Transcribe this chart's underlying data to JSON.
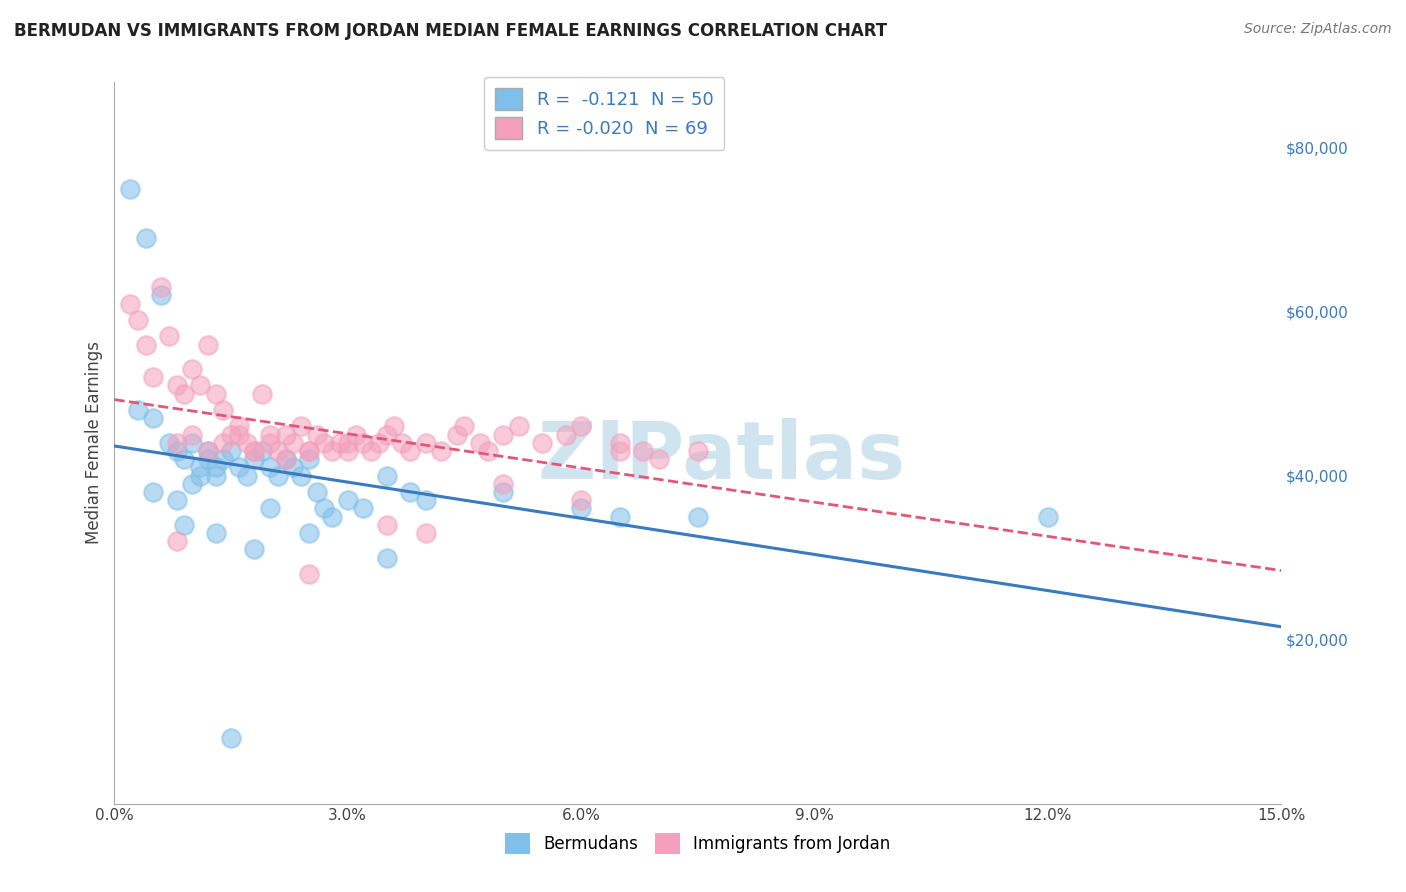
{
  "title": "BERMUDAN VS IMMIGRANTS FROM JORDAN MEDIAN FEMALE EARNINGS CORRELATION CHART",
  "source": "Source: ZipAtlas.com",
  "ylabel": "Median Female Earnings",
  "xlim": [
    0.0,
    0.15
  ],
  "ylim": [
    0,
    88000
  ],
  "xticks": [
    0.0,
    0.03,
    0.06,
    0.09,
    0.12,
    0.15
  ],
  "xticklabels": [
    "0.0%",
    "3.0%",
    "6.0%",
    "9.0%",
    "12.0%",
    "15.0%"
  ],
  "ytick_positions": [
    20000,
    40000,
    60000,
    80000
  ],
  "ytick_labels": [
    "$20,000",
    "$40,000",
    "$60,000",
    "$80,000"
  ],
  "blue_R": -0.121,
  "blue_N": 50,
  "pink_R": -0.02,
  "pink_N": 69,
  "blue_color": "#7fbfea",
  "pink_color": "#f4a0bc",
  "blue_line_color": "#3a7abf",
  "pink_line_color": "#e05878",
  "watermark": "ZIPatlas",
  "watermark_color": "#d0e4f0",
  "background_color": "#ffffff",
  "grid_color": "#cccccc",
  "blue_x": [
    0.002,
    0.004,
    0.003,
    0.005,
    0.006,
    0.007,
    0.008,
    0.009,
    0.01,
    0.011,
    0.012,
    0.013,
    0.005,
    0.008,
    0.01,
    0.011,
    0.012,
    0.013,
    0.014,
    0.015,
    0.016,
    0.017,
    0.018,
    0.019,
    0.02,
    0.021,
    0.022,
    0.023,
    0.024,
    0.025,
    0.026,
    0.027,
    0.028,
    0.03,
    0.032,
    0.035,
    0.038,
    0.04,
    0.05,
    0.06,
    0.065,
    0.075,
    0.009,
    0.013,
    0.018,
    0.025,
    0.035,
    0.02,
    0.12,
    0.015
  ],
  "blue_y": [
    75000,
    69000,
    48000,
    47000,
    62000,
    44000,
    43000,
    42000,
    44000,
    41000,
    42000,
    40000,
    38000,
    37000,
    39000,
    40000,
    43000,
    41000,
    42000,
    43000,
    41000,
    40000,
    42000,
    43000,
    41000,
    40000,
    42000,
    41000,
    40000,
    42000,
    38000,
    36000,
    35000,
    37000,
    36000,
    40000,
    38000,
    37000,
    38000,
    36000,
    35000,
    35000,
    34000,
    33000,
    31000,
    33000,
    30000,
    36000,
    35000,
    8000
  ],
  "pink_x": [
    0.002,
    0.003,
    0.004,
    0.005,
    0.006,
    0.007,
    0.008,
    0.009,
    0.01,
    0.011,
    0.012,
    0.013,
    0.014,
    0.015,
    0.016,
    0.017,
    0.018,
    0.019,
    0.02,
    0.021,
    0.022,
    0.023,
    0.024,
    0.025,
    0.026,
    0.027,
    0.028,
    0.029,
    0.03,
    0.031,
    0.032,
    0.033,
    0.034,
    0.035,
    0.036,
    0.037,
    0.038,
    0.04,
    0.042,
    0.044,
    0.045,
    0.047,
    0.048,
    0.05,
    0.052,
    0.055,
    0.058,
    0.06,
    0.065,
    0.068,
    0.07,
    0.075,
    0.008,
    0.01,
    0.012,
    0.014,
    0.016,
    0.018,
    0.02,
    0.022,
    0.025,
    0.03,
    0.035,
    0.04,
    0.05,
    0.06,
    0.065,
    0.008,
    0.025
  ],
  "pink_y": [
    61000,
    59000,
    56000,
    52000,
    63000,
    57000,
    51000,
    50000,
    53000,
    51000,
    56000,
    50000,
    48000,
    45000,
    46000,
    44000,
    43000,
    50000,
    45000,
    43000,
    42000,
    44000,
    46000,
    43000,
    45000,
    44000,
    43000,
    44000,
    43000,
    45000,
    44000,
    43000,
    44000,
    45000,
    46000,
    44000,
    43000,
    44000,
    43000,
    45000,
    46000,
    44000,
    43000,
    45000,
    46000,
    44000,
    45000,
    46000,
    44000,
    43000,
    42000,
    43000,
    44000,
    45000,
    43000,
    44000,
    45000,
    43000,
    44000,
    45000,
    43000,
    44000,
    34000,
    33000,
    39000,
    37000,
    43000,
    32000,
    28000
  ]
}
